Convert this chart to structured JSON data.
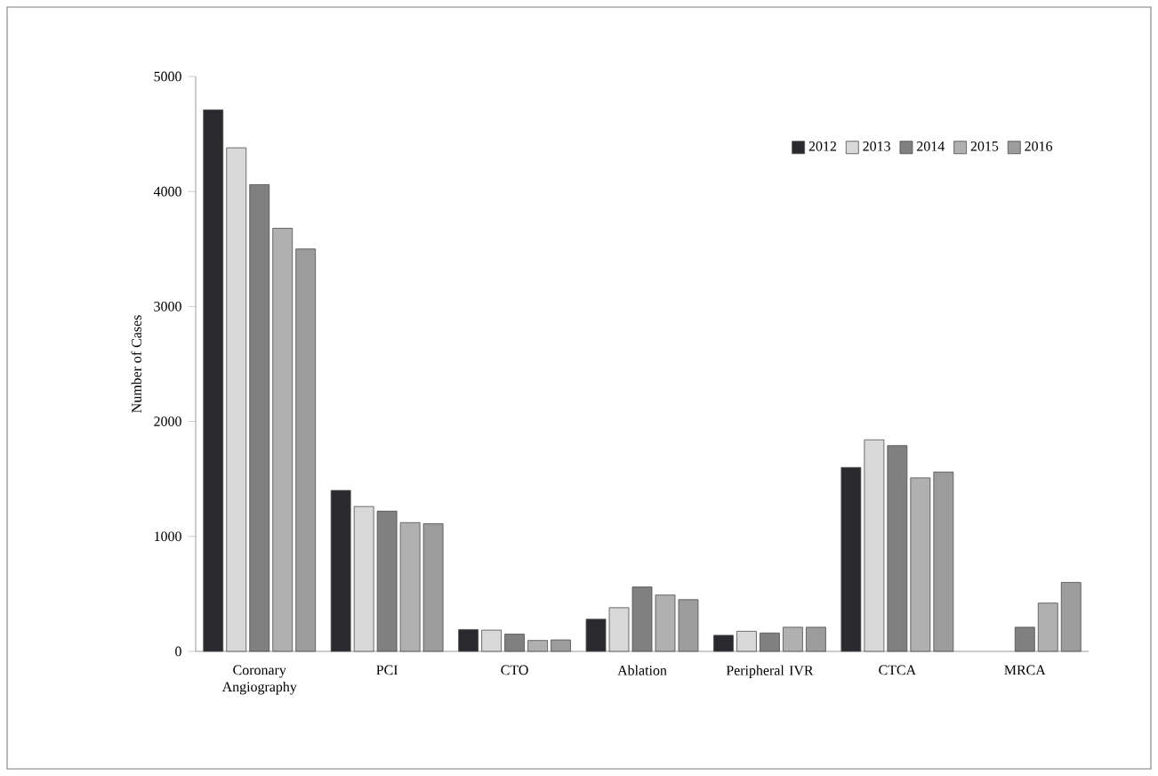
{
  "chart_data": {
    "type": "bar",
    "ylabel": "Number of Cases",
    "categories": [
      "Coronary Angiography",
      "PCI",
      "CTO",
      "Ablation",
      "Peripheral IVR",
      "CTCA",
      "MRCA"
    ],
    "series": [
      {
        "name": "2012",
        "color": "#2a2a2e",
        "values": [
          4710,
          1400,
          190,
          280,
          140,
          1600,
          null
        ]
      },
      {
        "name": "2013",
        "color": "#d8d8d8",
        "values": [
          4380,
          1260,
          185,
          380,
          175,
          1840,
          null
        ]
      },
      {
        "name": "2014",
        "color": "#808080",
        "values": [
          4060,
          1220,
          150,
          560,
          160,
          1790,
          210
        ]
      },
      {
        "name": "2015",
        "color": "#b0b0b0",
        "values": [
          3680,
          1120,
          95,
          490,
          210,
          1510,
          420
        ]
      },
      {
        "name": "2016",
        "color": "#9c9c9c",
        "values": [
          3500,
          1110,
          100,
          450,
          210,
          1560,
          600
        ]
      }
    ],
    "ylim": [
      0,
      5000
    ],
    "yticks": [
      0,
      1000,
      2000,
      3000,
      4000,
      5000
    ],
    "grid": false,
    "legend": "top right"
  }
}
